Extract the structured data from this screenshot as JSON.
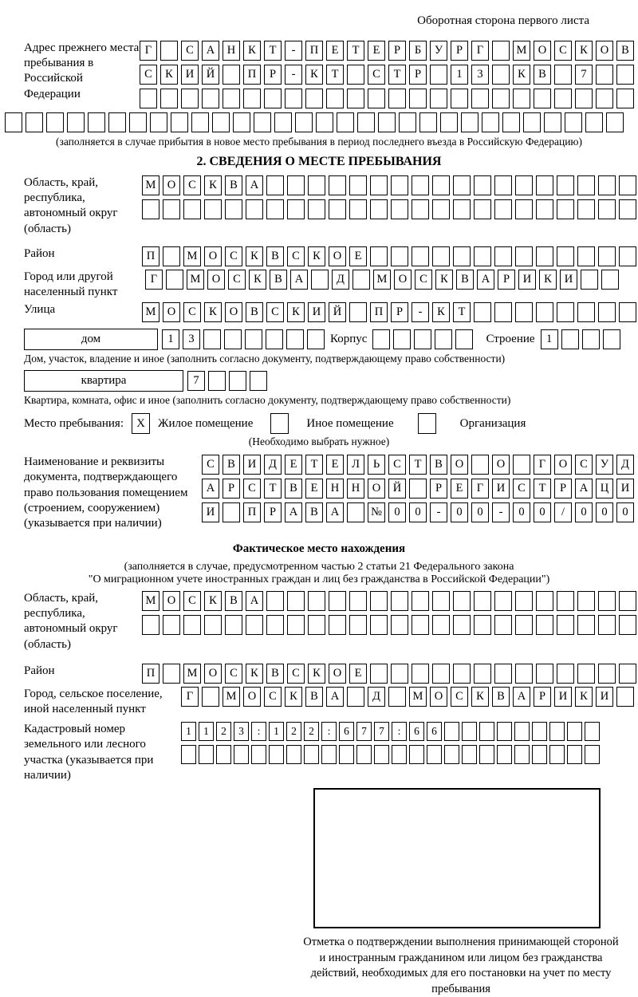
{
  "page": {
    "back_note": "Оборотная сторона первого листа"
  },
  "prev_address": {
    "label": "Адрес прежнего места пребывания в Российской Федерации",
    "rows": [
      {
        "text": "Г САНКТ-ПЕТЕРБУРГ МОСКОВ",
        "count": 24
      },
      {
        "text": "СКИЙ ПР-КТ СТР 13 КВ 7",
        "count": 24
      },
      {
        "text": "",
        "count": 24
      }
    ],
    "full_row": {
      "text": "",
      "count": 30
    },
    "caption": "(заполняется в случае прибытия в новое место пребывания в период последнего въезда в Российскую Федерацию)"
  },
  "section2": {
    "title": "2. СВЕДЕНИЯ О МЕСТЕ ПРЕБЫВАНИЯ",
    "region": {
      "label": "Область, край, республика, автономный округ (область)",
      "rows": [
        {
          "text": "МОСКВА",
          "count": 24
        },
        {
          "text": "",
          "count": 24
        }
      ]
    },
    "district": {
      "label": "Район",
      "row": {
        "text": "П МОСКВСКОЕ",
        "count": 24
      }
    },
    "city": {
      "label": "Город или другой населенный пункт",
      "row": {
        "text": "Г МОСКВА Д МОСКВАРИКИ",
        "count": 23
      }
    },
    "street": {
      "label": "Улица",
      "row": {
        "text": "МОСКОВСКИЙ ПР-КТ",
        "count": 24
      }
    },
    "house": {
      "box_label": "дом",
      "cells": {
        "text": "13",
        "count": 8
      },
      "korpus_label": "Корпус",
      "korpus_cells": {
        "text": "",
        "count": 5
      },
      "stroenie_label": "Строение",
      "stroenie_cells": {
        "text": "1",
        "count": 4
      },
      "caption": "Дом, участок, владение и иное (заполнить согласно документу, подтверждающему право собственности)"
    },
    "apartment": {
      "box_label": "квартира",
      "cells": {
        "text": "7",
        "count": 4
      },
      "caption": "Квартира, комната, офис и иное (заполнить согласно документу, подтверждающему право собственности)"
    },
    "stay_type": {
      "label": "Место пребывания:",
      "options": [
        {
          "label": "Жилое помещение",
          "mark": "X"
        },
        {
          "label": "Иное помещение",
          "mark": ""
        },
        {
          "label": "Организация",
          "mark": ""
        }
      ],
      "note": "(Необходимо выбрать нужное)"
    },
    "document": {
      "label": "Наименование и реквизиты документа, подтверждающего право пользования помещением (строением, сооружением) (указывается при наличии)",
      "rows": [
        {
          "text": "СВИДЕТЕЛЬСТВО О ГОСУД",
          "count": 21
        },
        {
          "text": "АРСТВЕННОЙ РЕГИСТРАЦИ",
          "count": 21
        },
        {
          "text": "И ПРАВА №00-00-00/000",
          "count": 21
        }
      ]
    }
  },
  "actual_location": {
    "title": "Фактическое место нахождения",
    "note_line1": "(заполняется в случае, предусмотренном частью 2 статьи 21 Федерального закона",
    "note_line2": "\"О миграционном учете иностранных граждан и лиц без гражданства в Российской Федерации\")",
    "region": {
      "label": "Область, край, республика, автономный округ (область)",
      "rows": [
        {
          "text": "МОСКВА",
          "count": 24
        },
        {
          "text": "",
          "count": 24
        }
      ]
    },
    "district": {
      "label": "Район",
      "row": {
        "text": "П МОСКВСКОЕ",
        "count": 24
      }
    },
    "city": {
      "label": "Город, сельское поселение, иной населенный пункт",
      "row": {
        "text": "Г МОСКВА Д МОСКВАРИКИ",
        "count": 22
      }
    },
    "cadastral": {
      "label": "Кадастровый номер земельного или лесного участка (указывается при наличии)",
      "rows": [
        {
          "text": "1123:122:677:66",
          "count": 24
        },
        {
          "text": "",
          "count": 24
        }
      ]
    },
    "stamp_caption": "Отметка о подтверждении выполнения принимающей стороной и иностранным гражданином или лицом без гражданства действий, необходимых для его постановки на учет по месту пребывания"
  }
}
